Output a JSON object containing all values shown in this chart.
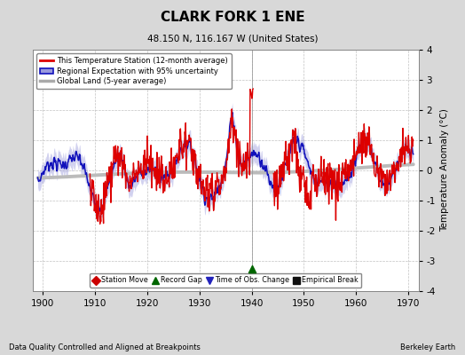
{
  "title": "CLARK FORK 1 ENE",
  "subtitle": "48.150 N, 116.167 W (United States)",
  "ylabel": "Temperature Anomaly (°C)",
  "xlabel_left": "Data Quality Controlled and Aligned at Breakpoints",
  "xlabel_right": "Berkeley Earth",
  "ylim": [
    -4,
    4
  ],
  "xlim": [
    1898,
    1972
  ],
  "xticks": [
    1900,
    1910,
    1920,
    1930,
    1940,
    1950,
    1960,
    1970
  ],
  "yticks": [
    -4,
    -3,
    -2,
    -1,
    0,
    1,
    2,
    3,
    4
  ],
  "bg_color": "#d8d8d8",
  "plot_bg_color": "#ffffff",
  "grid_color": "#bbbbbb",
  "red_color": "#dd0000",
  "blue_color": "#1111bb",
  "blue_fill_color": "#9999dd",
  "gray_color": "#bbbbbb",
  "legend_labels": [
    "This Temperature Station (12-month average)",
    "Regional Expectation with 95% uncertainty",
    "Global Land (5-year average)"
  ],
  "legend_marker_labels": [
    "Station Move",
    "Record Gap",
    "Time of Obs. Change",
    "Empirical Break"
  ]
}
